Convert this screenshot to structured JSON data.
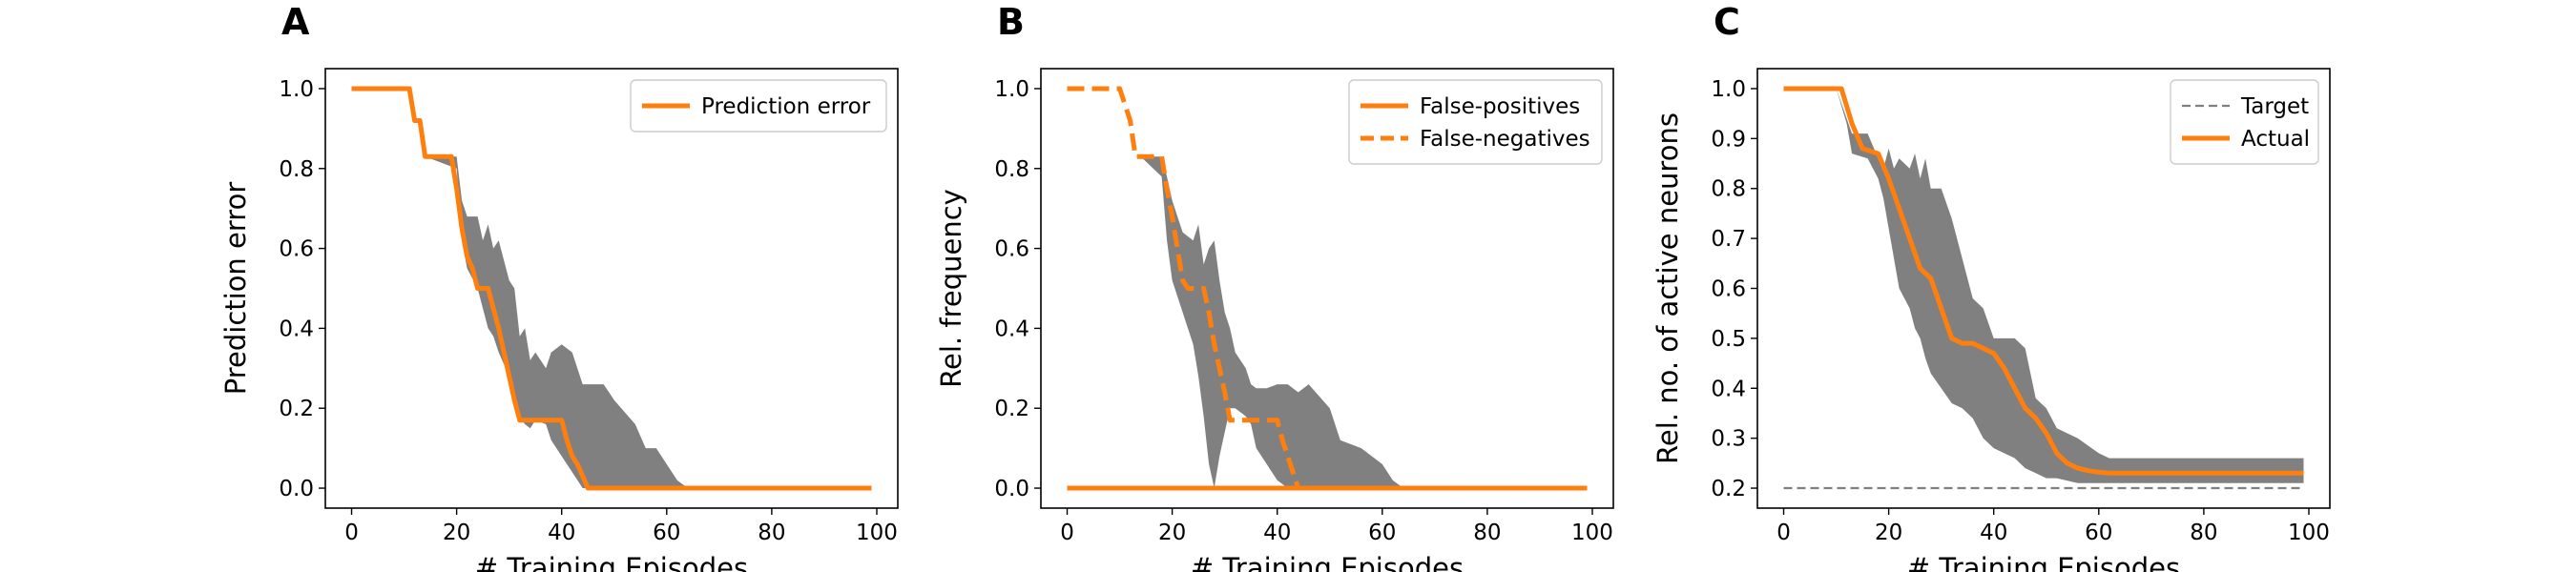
{
  "colors": {
    "accent": "#ff7f0e",
    "band": "#808080",
    "target": "#808080",
    "axis": "#000000"
  },
  "chart_data": [
    {
      "panel": "A",
      "type": "line",
      "xlabel": "# Training Episodes",
      "ylabel": "Prediction error",
      "xlim": [
        -5,
        104
      ],
      "ylim": [
        -0.05,
        1.05
      ],
      "xticks": [
        0,
        20,
        40,
        60,
        80,
        100
      ],
      "yticks": [
        0.0,
        0.2,
        0.4,
        0.6,
        0.8,
        1.0
      ],
      "yticklabels": [
        "0.0",
        "0.2",
        "0.4",
        "0.6",
        "0.8",
        "1.0"
      ],
      "legend_position": "top-right",
      "band": {
        "x": [
          0,
          11,
          13,
          14,
          20,
          21,
          22,
          24,
          25,
          26,
          27,
          28,
          30,
          31,
          32,
          33,
          34,
          35,
          37,
          38,
          40,
          42,
          44,
          48,
          50,
          54,
          56,
          58,
          62,
          64,
          66,
          99
        ],
        "upper": [
          1.0,
          1.0,
          0.92,
          0.83,
          0.83,
          0.72,
          0.68,
          0.68,
          0.62,
          0.66,
          0.6,
          0.62,
          0.52,
          0.5,
          0.38,
          0.4,
          0.32,
          0.34,
          0.3,
          0.34,
          0.36,
          0.34,
          0.26,
          0.26,
          0.22,
          0.16,
          0.1,
          0.1,
          0.02,
          0.0,
          0.0,
          0.0
        ],
        "lower": [
          1.0,
          1.0,
          0.92,
          0.83,
          0.8,
          0.62,
          0.55,
          0.5,
          0.45,
          0.4,
          0.38,
          0.34,
          0.28,
          0.22,
          0.18,
          0.16,
          0.15,
          0.17,
          0.16,
          0.12,
          0.08,
          0.04,
          0.0,
          0.0,
          0.0,
          0.0,
          0.0,
          0.0,
          0.0,
          0.0,
          0.0,
          0.0
        ]
      },
      "series": [
        {
          "name": "Prediction error",
          "style": "solid",
          "x": [
            0,
            11,
            12,
            13,
            14,
            19,
            20,
            21,
            22,
            23,
            24,
            26,
            27,
            28,
            29,
            30,
            31,
            32,
            34,
            36,
            38,
            40,
            41,
            42,
            43,
            44,
            45,
            99
          ],
          "y": [
            1.0,
            1.0,
            0.92,
            0.92,
            0.83,
            0.83,
            0.75,
            0.65,
            0.58,
            0.55,
            0.5,
            0.5,
            0.45,
            0.4,
            0.34,
            0.28,
            0.22,
            0.17,
            0.17,
            0.17,
            0.17,
            0.17,
            0.12,
            0.08,
            0.06,
            0.03,
            0.0,
            0.0
          ]
        }
      ]
    },
    {
      "panel": "B",
      "type": "line",
      "xlabel": "# Training Episodes",
      "ylabel": "Rel. frequency",
      "xlim": [
        -5,
        104
      ],
      "ylim": [
        -0.05,
        1.05
      ],
      "xticks": [
        0,
        20,
        40,
        60,
        80,
        100
      ],
      "yticks": [
        0.0,
        0.2,
        0.4,
        0.6,
        0.8,
        1.0
      ],
      "yticklabels": [
        "0.0",
        "0.2",
        "0.4",
        "0.6",
        "0.8",
        "1.0"
      ],
      "legend_position": "top-right",
      "band": {
        "x": [
          0,
          10,
          12,
          14,
          18,
          19,
          20,
          22,
          24,
          25,
          26,
          27,
          28,
          29,
          30,
          31,
          32,
          34,
          35,
          36,
          38,
          40,
          42,
          44,
          46,
          50,
          52,
          56,
          60,
          62,
          64,
          66,
          99
        ],
        "upper": [
          1.0,
          1.0,
          0.9,
          0.83,
          0.83,
          0.78,
          0.72,
          0.64,
          0.62,
          0.66,
          0.56,
          0.6,
          0.62,
          0.52,
          0.44,
          0.4,
          0.34,
          0.3,
          0.26,
          0.25,
          0.25,
          0.26,
          0.26,
          0.24,
          0.26,
          0.2,
          0.12,
          0.1,
          0.06,
          0.02,
          0.0,
          0.0,
          0.0
        ],
        "lower": [
          1.0,
          1.0,
          0.9,
          0.83,
          0.78,
          0.62,
          0.52,
          0.44,
          0.36,
          0.28,
          0.18,
          0.06,
          0.0,
          0.08,
          0.14,
          0.2,
          0.2,
          0.18,
          0.16,
          0.1,
          0.06,
          0.02,
          0.0,
          0.0,
          0.0,
          0.0,
          0.0,
          0.0,
          0.0,
          0.0,
          0.0,
          0.0,
          0.0
        ]
      },
      "series": [
        {
          "name": "False-positives",
          "style": "solid",
          "x": [
            0,
            99
          ],
          "y": [
            0.0,
            0.0
          ]
        },
        {
          "name": "False-negatives",
          "style": "dashed",
          "x": [
            0,
            10,
            12,
            13,
            14,
            18,
            19,
            20,
            21,
            22,
            23,
            24,
            26,
            27,
            28,
            29,
            30,
            31,
            32,
            34,
            36,
            38,
            40,
            41,
            42,
            43,
            44,
            99
          ],
          "y": [
            1.0,
            1.0,
            0.92,
            0.83,
            0.83,
            0.83,
            0.75,
            0.68,
            0.6,
            0.52,
            0.5,
            0.5,
            0.5,
            0.44,
            0.36,
            0.3,
            0.24,
            0.17,
            0.17,
            0.17,
            0.17,
            0.17,
            0.17,
            0.12,
            0.08,
            0.04,
            0.0,
            0.0
          ]
        }
      ]
    },
    {
      "panel": "C",
      "type": "line",
      "xlabel": "# Training Episodes",
      "ylabel": "Rel. no. of active neurons",
      "xlim": [
        -5,
        104
      ],
      "ylim": [
        0.16,
        1.04
      ],
      "xticks": [
        0,
        20,
        40,
        60,
        80,
        100
      ],
      "yticks": [
        0.2,
        0.3,
        0.4,
        0.5,
        0.6,
        0.7,
        0.8,
        0.9,
        1.0
      ],
      "yticklabels": [
        "0.2",
        "0.3",
        "0.4",
        "0.5",
        "0.6",
        "0.7",
        "0.8",
        "0.9",
        "1.0"
      ],
      "legend_position": "top-right",
      "band": {
        "x": [
          0,
          10,
          12,
          13,
          16,
          18,
          19,
          20,
          21,
          22,
          24,
          25,
          26,
          27,
          28,
          30,
          32,
          34,
          36,
          38,
          40,
          44,
          46,
          48,
          50,
          52,
          56,
          60,
          62,
          64,
          66,
          99
        ],
        "upper": [
          1.0,
          1.0,
          0.94,
          0.91,
          0.91,
          0.86,
          0.84,
          0.88,
          0.84,
          0.86,
          0.84,
          0.87,
          0.82,
          0.86,
          0.8,
          0.8,
          0.74,
          0.66,
          0.58,
          0.56,
          0.5,
          0.5,
          0.48,
          0.38,
          0.36,
          0.32,
          0.3,
          0.27,
          0.26,
          0.26,
          0.26,
          0.26
        ],
        "lower": [
          1.0,
          1.0,
          0.93,
          0.87,
          0.86,
          0.82,
          0.78,
          0.72,
          0.66,
          0.6,
          0.56,
          0.52,
          0.5,
          0.46,
          0.43,
          0.4,
          0.37,
          0.36,
          0.34,
          0.3,
          0.28,
          0.26,
          0.24,
          0.23,
          0.22,
          0.22,
          0.21,
          0.21,
          0.21,
          0.21,
          0.21,
          0.21
        ]
      },
      "series": [
        {
          "name": "Target",
          "style": "dashed",
          "x": [
            0,
            99
          ],
          "y": [
            0.2,
            0.2
          ]
        },
        {
          "name": "Actual",
          "style": "solid",
          "x": [
            0,
            11,
            13,
            15,
            18,
            20,
            22,
            24,
            26,
            28,
            30,
            32,
            34,
            36,
            38,
            40,
            42,
            44,
            46,
            48,
            50,
            52,
            54,
            56,
            58,
            60,
            62,
            66,
            70,
            99
          ],
          "y": [
            1.0,
            1.0,
            0.93,
            0.88,
            0.87,
            0.82,
            0.76,
            0.7,
            0.64,
            0.62,
            0.56,
            0.5,
            0.49,
            0.49,
            0.48,
            0.47,
            0.44,
            0.4,
            0.36,
            0.34,
            0.31,
            0.27,
            0.25,
            0.24,
            0.235,
            0.232,
            0.23,
            0.23,
            0.23,
            0.23
          ]
        }
      ]
    }
  ]
}
